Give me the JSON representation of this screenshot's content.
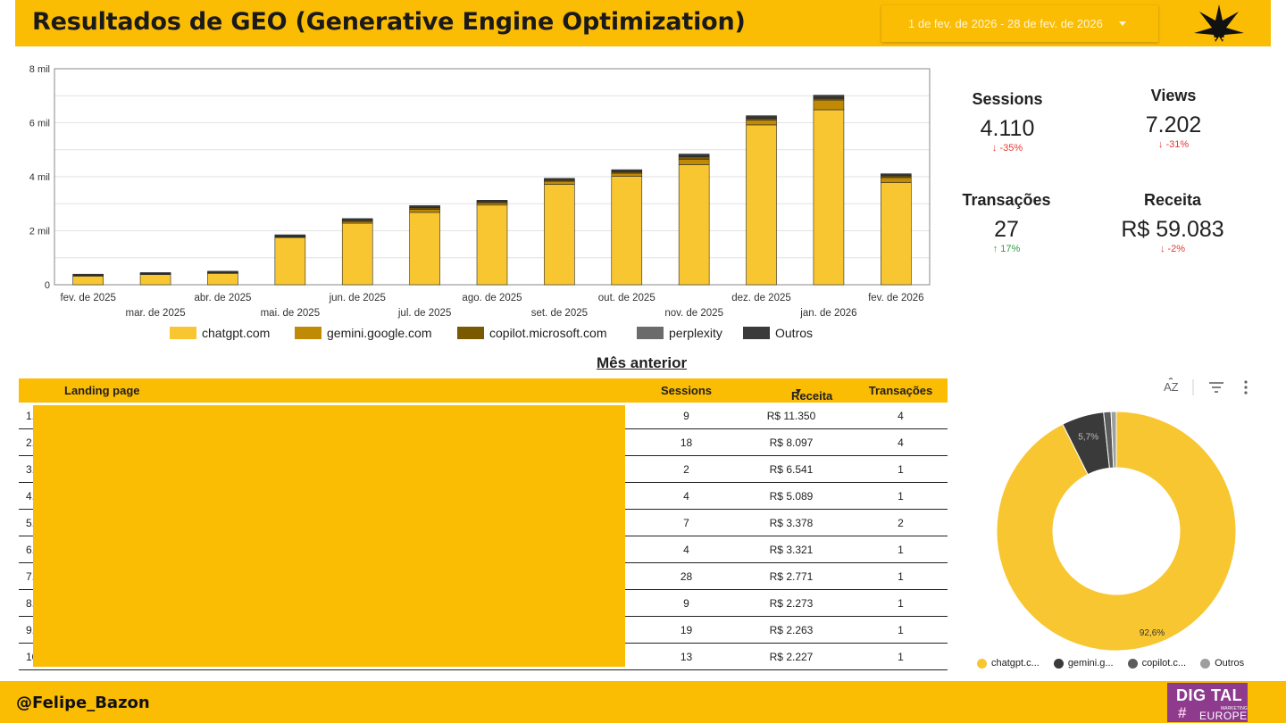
{
  "header": {
    "title": "Resultados de GEO (Generative Engine Optimization)",
    "date_range": "1 de fev. de 2026 - 28 de fev. de 2026"
  },
  "colors": {
    "brand_yellow": "#FBBC04",
    "chatgpt": "#F8C630",
    "gemini": "#C18A05",
    "copilot": "#7A5A00",
    "perplexity": "#6B6B6B",
    "outros": "#3A3A3A",
    "negative": "#e53935",
    "positive": "#2e9e44"
  },
  "chart_data": [
    {
      "type": "bar",
      "stacked": true,
      "categories": [
        "fev. de 2025",
        "mar. de 2025",
        "abr. de 2025",
        "mai. de 2025",
        "jun. de 2025",
        "jul. de 2025",
        "ago. de 2025",
        "set. de 2025",
        "out. de 2025",
        "nov. de 2025",
        "dez. de 2025",
        "jan. de 2026",
        "fev. de 2026"
      ],
      "series": [
        {
          "name": "chatgpt.com",
          "values": [
            320,
            380,
            420,
            1750,
            2280,
            2680,
            2950,
            3720,
            4020,
            4450,
            5920,
            6480,
            3780
          ]
        },
        {
          "name": "gemini.google.com",
          "values": [
            20,
            20,
            25,
            20,
            60,
            110,
            80,
            110,
            110,
            200,
            180,
            360,
            190
          ]
        },
        {
          "name": "copilot.microsoft.com",
          "values": [
            10,
            10,
            10,
            20,
            40,
            60,
            40,
            40,
            50,
            90,
            60,
            60,
            60
          ]
        },
        {
          "name": "perplexity",
          "values": [
            5,
            5,
            5,
            10,
            10,
            10,
            10,
            10,
            10,
            20,
            20,
            20,
            10
          ]
        },
        {
          "name": "Outros",
          "values": [
            35,
            35,
            40,
            50,
            60,
            70,
            50,
            60,
            70,
            80,
            80,
            100,
            70
          ]
        }
      ],
      "yticks": [
        "0",
        "2 mil",
        "4 mil",
        "6 mil",
        "8 mil"
      ],
      "ylim": [
        0,
        8000
      ],
      "legend_position": "bottom"
    },
    {
      "type": "pie",
      "donut": true,
      "slices": [
        {
          "name": "chatgpt.c...",
          "value": 92.6,
          "label": "92,6%"
        },
        {
          "name": "gemini.g...",
          "value": 5.7,
          "label": "5,7%"
        },
        {
          "name": "copilot.c...",
          "value": 1.0,
          "label": ""
        },
        {
          "name": "Outros",
          "value": 0.7,
          "label": ""
        }
      ]
    }
  ],
  "kpis": [
    {
      "label": "Sessions",
      "value": "4.110",
      "delta": "-35%",
      "arrow": "↓"
    },
    {
      "label": "Views",
      "value": "7.202",
      "delta": "-31%",
      "arrow": "↓"
    },
    {
      "label": "Transações",
      "value": "27",
      "delta": "17%",
      "arrow": "↑"
    },
    {
      "label": "Receita",
      "value": "R$ 59.083",
      "delta": "-2%",
      "arrow": "↓"
    }
  ],
  "table": {
    "title": "Mês anterior",
    "headers": {
      "landing": "Landing page",
      "sessions": "Sessions",
      "receita": "Receita",
      "transacoes": "Transações"
    },
    "rows": [
      {
        "idx": "1.",
        "sessions": "9",
        "receita": "R$ 11.350",
        "transacoes": "4"
      },
      {
        "idx": "2.",
        "sessions": "18",
        "receita": "R$ 8.097",
        "transacoes": "4"
      },
      {
        "idx": "3.",
        "sessions": "2",
        "receita": "R$ 6.541",
        "transacoes": "1"
      },
      {
        "idx": "4.",
        "sessions": "4",
        "receita": "R$ 5.089",
        "transacoes": "1"
      },
      {
        "idx": "5.",
        "sessions": "7",
        "receita": "R$ 3.378",
        "transacoes": "2"
      },
      {
        "idx": "6.",
        "sessions": "4",
        "receita": "R$ 3.321",
        "transacoes": "1"
      },
      {
        "idx": "7.",
        "sessions": "28",
        "receita": "R$ 2.771",
        "transacoes": "1"
      },
      {
        "idx": "8.",
        "sessions": "9",
        "receita": "R$ 2.273",
        "transacoes": "1"
      },
      {
        "idx": "9.",
        "sessions": "19",
        "receita": "R$ 2.263",
        "transacoes": "1"
      },
      {
        "idx": "10.",
        "sessions": "13",
        "receita": "R$ 2.227",
        "transacoes": "1"
      }
    ]
  },
  "donut_tools": {
    "sort_label": "AZ"
  },
  "footer": {
    "handle": "@Felipe_Bazon",
    "logo_line1": "DIG TAL",
    "logo_line2": "MARKETING",
    "logo_line3": "EUROPE"
  }
}
